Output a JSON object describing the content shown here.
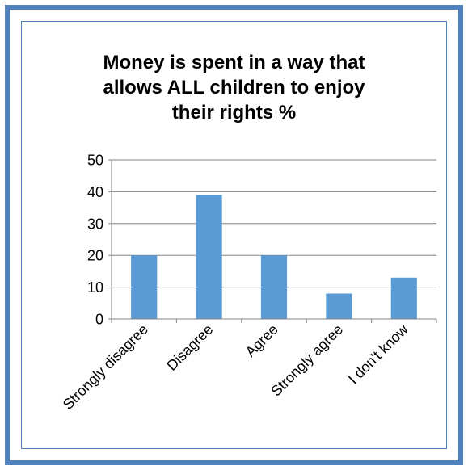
{
  "chart_data": {
    "type": "bar",
    "title_lines": [
      "Money is spent in a way that",
      "allows ALL children to enjoy",
      "their rights %"
    ],
    "categories": [
      "Strongly disagree",
      "Disagree",
      "Agree",
      "Strongly agree",
      "I don't know"
    ],
    "values": [
      20,
      39,
      20,
      8,
      13
    ],
    "ylim": [
      0,
      50
    ],
    "yticks": [
      "0",
      "10",
      "20",
      "30",
      "40",
      "50"
    ],
    "grid": true,
    "legend": "none",
    "bar_color": "#5b9bd5",
    "frame_color": "#4f81bd"
  }
}
